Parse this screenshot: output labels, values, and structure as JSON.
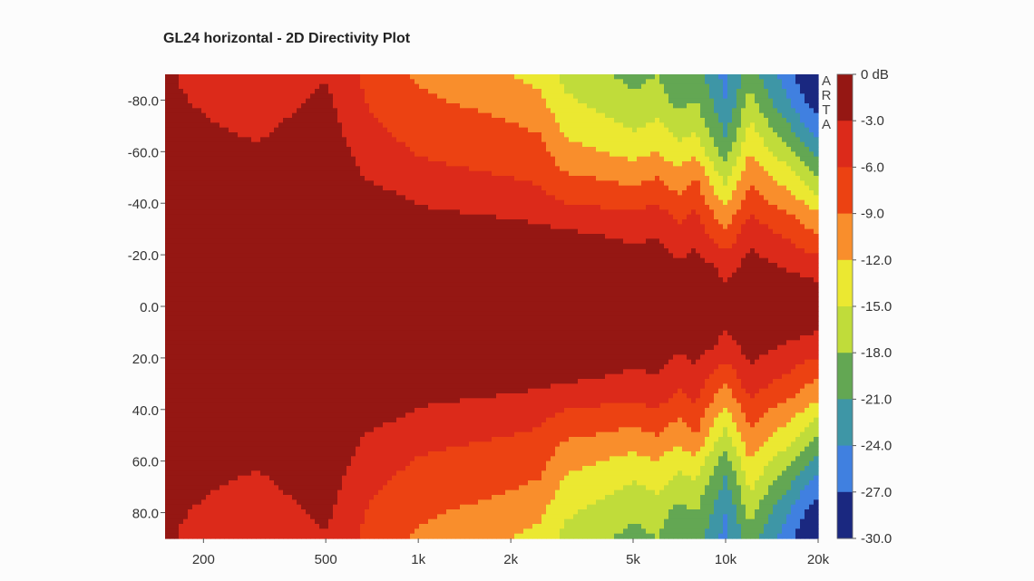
{
  "chart_data": {
    "type": "heatmap",
    "title": "GL24 horizontal - 2D Directivity Plot",
    "xlabel": "",
    "ylabel": "",
    "x_scale": "log",
    "x_range": [
      150,
      20000
    ],
    "y_range": [
      -90,
      90
    ],
    "x_tick_labels": [
      "200",
      "500",
      "1k",
      "2k",
      "5k",
      "10k",
      "20k"
    ],
    "x_tick_values": [
      200,
      500,
      1000,
      2000,
      5000,
      10000,
      20000
    ],
    "y_tick_labels": [
      "-80.0",
      "-60.0",
      "-40.0",
      "-20.0",
      "0.0",
      "20.0",
      "40.0",
      "60.0",
      "80.0"
    ],
    "y_tick_values": [
      -80,
      -60,
      -40,
      -20,
      0,
      20,
      40,
      60,
      80
    ],
    "color_scale": {
      "labels": [
        "0 dB",
        "-3.0",
        "-6.0",
        "-9.0",
        "-12.0",
        "-15.0",
        "-18.0",
        "-21.0",
        "-24.0",
        "-27.0",
        "-30.0"
      ],
      "levels_db": [
        0,
        -3,
        -6,
        -9,
        -12,
        -15,
        -18,
        -21,
        -24,
        -27,
        -30
      ],
      "colors": [
        "#951713",
        "#dc2a1a",
        "#ec4212",
        "#f98e2c",
        "#ebe831",
        "#c0dc3a",
        "#63a753",
        "#3e96a6",
        "#4080e0",
        "#1a2880"
      ]
    },
    "description_values": {
      "freq_hz": [
        150,
        200,
        300,
        400,
        500,
        700,
        1000,
        1500,
        2000,
        2500,
        3000,
        4000,
        5000,
        6000,
        7000,
        8000,
        9000,
        10000,
        12000,
        14000,
        16000,
        18000,
        20000
      ],
      "angle_deg": [
        0,
        10,
        20,
        30,
        40,
        50,
        60,
        70,
        80,
        90
      ],
      "spl_db": [
        [
          0,
          0,
          0,
          0,
          0,
          -1,
          -2,
          -2.5,
          -2.7,
          -2.8
        ],
        [
          0,
          0,
          0,
          0,
          0,
          -1,
          -2.2,
          -2.8,
          -3.2,
          -3.5
        ],
        [
          0,
          0,
          0,
          0,
          0,
          -1.5,
          -2.7,
          -3.5,
          -4,
          -4.5
        ],
        [
          0,
          0,
          0,
          0,
          0,
          -1,
          -1.8,
          -2.6,
          -3.3,
          -3.8
        ],
        [
          0,
          0,
          0,
          0,
          0,
          -0.5,
          -1.2,
          -1.8,
          -2.4,
          -3.2
        ],
        [
          0,
          0,
          0,
          0,
          -1,
          -3.5,
          -4.5,
          -5.5,
          -6.5,
          -7.2
        ],
        [
          0,
          0,
          0,
          -1,
          -3.2,
          -5,
          -6.2,
          -7.5,
          -8.5,
          -9.5
        ],
        [
          0,
          0,
          0,
          -1.5,
          -4,
          -5.5,
          -7,
          -8,
          -9.5,
          -10.5
        ],
        [
          0,
          0,
          0,
          -2,
          -4.5,
          -6,
          -7.5,
          -8.8,
          -10.5,
          -12
        ],
        [
          0,
          0,
          0,
          -2.5,
          -5,
          -6.5,
          -8,
          -9.5,
          -11.5,
          -13
        ],
        [
          0,
          0,
          -1,
          -3,
          -6,
          -8.5,
          -11,
          -13,
          -14.5,
          -16
        ],
        [
          0,
          0,
          -1.5,
          -3.5,
          -6.5,
          -9.2,
          -12,
          -14,
          -16,
          -17.5
        ],
        [
          0,
          -0.5,
          -2.5,
          -4,
          -7,
          -10,
          -13,
          -15.5,
          -17.5,
          -19
        ],
        [
          0,
          -0.5,
          -2,
          -3.5,
          -6,
          -9,
          -12,
          -14.5,
          -16.5,
          -18
        ],
        [
          0,
          -1.5,
          -3.5,
          -5.5,
          -8,
          -11,
          -14,
          -16.5,
          -19,
          -21
        ],
        [
          0,
          -0.5,
          -2.5,
          -4.5,
          -6.5,
          -9,
          -12.5,
          -16,
          -18,
          -19.5
        ],
        [
          0,
          -1.5,
          -4,
          -7,
          -10,
          -13,
          -16.5,
          -19,
          -21,
          -22.5
        ],
        [
          0,
          -3,
          -5.5,
          -9,
          -12.5,
          -16,
          -19.5,
          -22,
          -24,
          -25
        ],
        [
          0,
          -1,
          -2.5,
          -4.5,
          -7,
          -9.5,
          -12,
          -14.5,
          -17,
          -19
        ],
        [
          0,
          -1.5,
          -3.5,
          -6,
          -9,
          -12,
          -15,
          -18,
          -21,
          -23
        ],
        [
          0,
          -2,
          -4.5,
          -7,
          -10,
          -13.5,
          -17,
          -20.5,
          -24,
          -26
        ],
        [
          0,
          -2.5,
          -5.5,
          -8.5,
          -12,
          -16,
          -20,
          -24,
          -27,
          -29
        ],
        [
          0,
          -3,
          -6,
          -9.5,
          -13.5,
          -18,
          -22,
          -26,
          -29,
          -30
        ]
      ]
    }
  }
}
